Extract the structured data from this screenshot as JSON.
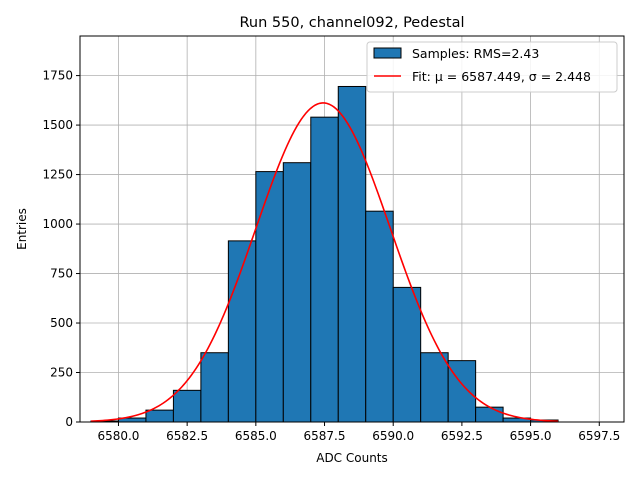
{
  "chart_data": {
    "type": "bar",
    "title": "Run 550, channel092, Pedestal",
    "xlabel": "ADC Counts",
    "ylabel": "Entries",
    "xlim": [
      6578.6,
      6598.4
    ],
    "ylim": [
      0,
      1950
    ],
    "xticks": [
      6580.0,
      6582.5,
      6585.0,
      6587.5,
      6590.0,
      6592.5,
      6595.0,
      6597.5
    ],
    "xtick_labels": [
      "6580.0",
      "6582.5",
      "6585.0",
      "6587.5",
      "6590.0",
      "6592.5",
      "6595.0",
      "6597.5"
    ],
    "yticks": [
      0,
      250,
      500,
      750,
      1000,
      1250,
      1500,
      1750
    ],
    "ytick_labels": [
      "0",
      "250",
      "500",
      "750",
      "1000",
      "1250",
      "1500",
      "1750"
    ],
    "grid": true,
    "legend_position": "top-right",
    "series": [
      {
        "name": "Samples: RMS=2.43",
        "kind": "histogram",
        "color": "#1f77b4",
        "edge_color": "#000000",
        "bin_edges": [
          6579.0,
          6580.0,
          6581.0,
          6582.0,
          6583.0,
          6584.0,
          6585.0,
          6586.0,
          6587.0,
          6588.0,
          6589.0,
          6590.0,
          6591.0,
          6592.0,
          6593.0,
          6594.0,
          6595.0,
          6596.0
        ],
        "counts": [
          5,
          20,
          60,
          160,
          350,
          915,
          1265,
          1310,
          1540,
          1695,
          1065,
          680,
          350,
          310,
          75,
          20,
          10
        ]
      },
      {
        "name": "Fit: μ = 6587.449, σ = 2.448",
        "kind": "gaussian",
        "color": "#ff0000",
        "mu": 6587.449,
        "sigma": 2.448,
        "amplitude": 1612,
        "x_range": [
          6579.0,
          6596.0
        ]
      }
    ]
  }
}
